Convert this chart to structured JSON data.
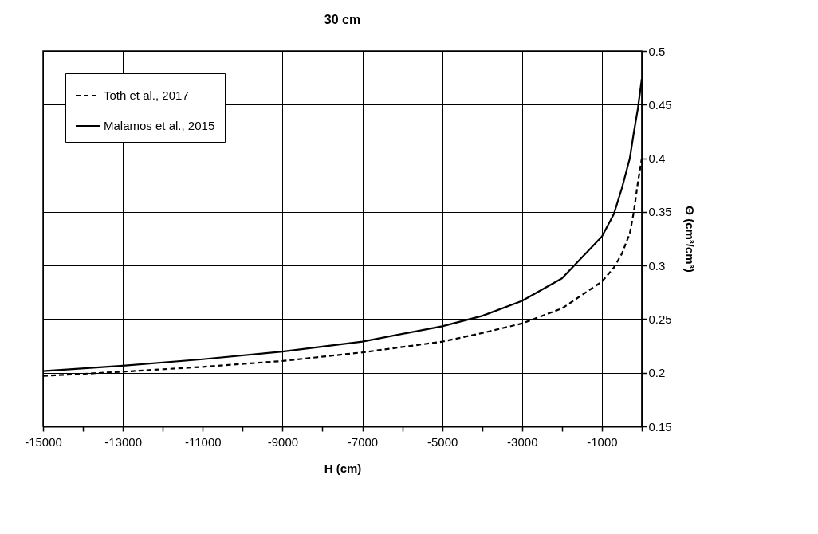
{
  "chart_data": {
    "type": "line",
    "title": "30 cm",
    "xlabel": "H (cm)",
    "ylabel": "Θ (cm³/cm³)",
    "x": [
      -15000,
      -13000,
      -11000,
      -9000,
      -7000,
      -5000,
      -4000,
      -3000,
      -2000,
      -1000,
      -700,
      -500,
      -300,
      -200,
      -100,
      0
    ],
    "series": [
      {
        "name": "Toth et al., 2017",
        "color": "#000000",
        "line_style": "dashed",
        "values": [
          0.197,
          0.201,
          0.2055,
          0.211,
          0.219,
          0.229,
          0.237,
          0.246,
          0.26,
          0.285,
          0.298,
          0.311,
          0.33,
          0.35,
          0.377,
          0.4
        ]
      },
      {
        "name": "Malamos et al., 2015",
        "color": "#000000",
        "line_style": "solid",
        "values": [
          0.2016,
          0.2066,
          0.2126,
          0.2197,
          0.229,
          0.2434,
          0.253,
          0.267,
          0.288,
          0.327,
          0.348,
          0.372,
          0.4,
          0.424,
          0.446,
          0.474
        ]
      }
    ],
    "xlim": [
      -15000,
      0
    ],
    "xticks": [
      -15000,
      {
        "value": -14000,
        "label": null
      },
      -13000,
      {
        "value": -12000,
        "label": null
      },
      -11000,
      {
        "value": -10000,
        "label": null
      },
      -9000,
      {
        "value": -8000,
        "label": null
      },
      -7000,
      {
        "value": -6000,
        "label": null
      },
      -5000,
      {
        "value": -4000,
        "label": null
      },
      -3000,
      {
        "value": -2000,
        "label": null
      },
      -1000,
      {
        "value": 0,
        "label": null
      }
    ],
    "ylim": [
      0.15,
      0.5
    ],
    "yticks": [
      0.15,
      0.2,
      0.25,
      0.3,
      0.35,
      0.4,
      0.45,
      0.5
    ],
    "grid": true,
    "legend": "top left",
    "marker": "none"
  }
}
